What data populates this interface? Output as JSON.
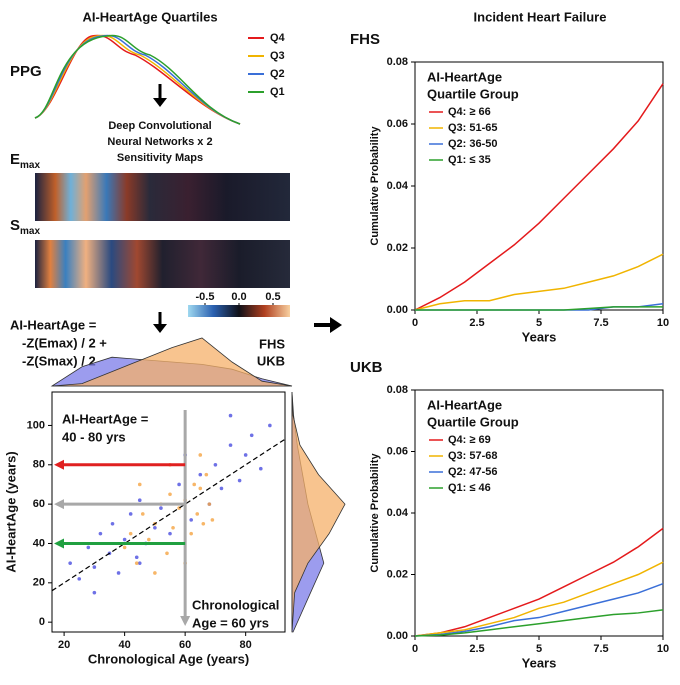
{
  "figure": {
    "left_title": "AI-HeartAge Quartiles",
    "right_title": "Incident Heart Failure",
    "ppg_label": "PPG",
    "network_lines": [
      "Deep Convolutional",
      "Neural Networks x 2",
      "Sensitivity Maps"
    ],
    "emax": {
      "main": "E",
      "sub": "max"
    },
    "smax": {
      "main": "S",
      "sub": "max"
    },
    "formula_lines": [
      "AI-HeartAge =",
      "-Z(Emax) / 2  +",
      "-Z(Smax) / 2"
    ]
  },
  "ppg_legend": [
    {
      "name": "Q4",
      "color": "#e41a1c"
    },
    {
      "name": "Q3",
      "color": "#f0b400"
    },
    {
      "name": "Q2",
      "color": "#3a6fd8"
    },
    {
      "name": "Q1",
      "color": "#2ca02c"
    }
  ],
  "colorbar": {
    "lim": [
      -0.75,
      0.75
    ],
    "ticks": [
      -0.5,
      {
        "value": 0,
        "label": "0.0"
      },
      0.5
    ]
  },
  "chart_data": [
    {
      "type": "area",
      "orientation": "horizontal",
      "x": [
        15,
        25,
        35,
        45,
        55,
        65,
        75,
        85,
        95
      ],
      "xlim": [
        15,
        95
      ],
      "ylim": [
        0,
        1
      ],
      "series": [
        {
          "name": "FHS",
          "color": "#7b7be8",
          "values": [
            0,
            0.4,
            0.6,
            0.55,
            0.5,
            0.45,
            0.35,
            0.15,
            0
          ]
        },
        {
          "name": "UKB",
          "color": "#f5b06a",
          "values": [
            0,
            0.05,
            0.3,
            0.55,
            0.8,
            1.0,
            0.5,
            0.1,
            0
          ]
        }
      ]
    },
    {
      "type": "scatter",
      "xlabel": "Chronological Age (years)",
      "ylabel": "AI-HeartAge (years)",
      "xlim": [
        16,
        93
      ],
      "ylim": [
        -5,
        117
      ],
      "xticks": [
        20,
        40,
        60,
        80
      ],
      "yticks": [
        0,
        20,
        40,
        60,
        80,
        100
      ],
      "diagonal": true,
      "vline": 60,
      "arrows": [
        {
          "y": 80,
          "color": "#e02020"
        },
        {
          "y": 60,
          "color": "#a8a8a8"
        },
        {
          "y": 40,
          "color": "#20a040"
        }
      ],
      "annotations": [
        [
          "AI-HeartAge =",
          "40 - 80 yrs"
        ],
        [
          "Chronological",
          "Age = 60 yrs"
        ]
      ],
      "series": [
        {
          "color": "#4a4ee0",
          "x": [
            22,
            25,
            28,
            30,
            32,
            35,
            36,
            38,
            40,
            42,
            44,
            45,
            47,
            50,
            52,
            55,
            58,
            62,
            65,
            68,
            70,
            72,
            75,
            78,
            80,
            82,
            85,
            88,
            30,
            45,
            60,
            75
          ],
          "y": [
            30,
            22,
            38,
            28,
            45,
            35,
            50,
            25,
            42,
            55,
            33,
            62,
            40,
            48,
            58,
            45,
            70,
            52,
            75,
            60,
            80,
            68,
            90,
            72,
            85,
            95,
            78,
            100,
            15,
            30,
            85,
            105
          ]
        },
        {
          "color": "#f5a442",
          "x": [
            40,
            42,
            44,
            46,
            48,
            50,
            52,
            54,
            55,
            56,
            58,
            60,
            62,
            63,
            64,
            65,
            66,
            67,
            68,
            69,
            45,
            50,
            55,
            60,
            65
          ],
          "y": [
            38,
            45,
            30,
            55,
            42,
            50,
            60,
            35,
            65,
            48,
            58,
            62,
            45,
            70,
            55,
            68,
            50,
            75,
            60,
            52,
            70,
            25,
            80,
            30,
            85
          ]
        }
      ]
    },
    {
      "type": "area",
      "orientation": "vertical",
      "y": [
        -5,
        15,
        30,
        45,
        60,
        75,
        90,
        105,
        117
      ],
      "ylim": [
        -5,
        117
      ],
      "xlim": [
        0,
        1
      ],
      "series": [
        {
          "color": "#7b7be8",
          "values": [
            0.02,
            0.35,
            0.6,
            0.45,
            0.3,
            0.2,
            0.1,
            0.03,
            0
          ]
        },
        {
          "color": "#f5b06a",
          "values": [
            0,
            0.05,
            0.3,
            0.7,
            1.0,
            0.5,
            0.15,
            0.02,
            0
          ]
        }
      ]
    },
    {
      "type": "line",
      "title": "FHS",
      "xlabel": "Years",
      "ylabel": "Cumulative Probability",
      "legend_title": [
        "AI-HeartAge",
        "Quartile Group"
      ],
      "x": [
        0,
        1,
        2,
        3,
        4,
        5,
        6,
        7,
        8,
        9,
        10
      ],
      "xlim": [
        0,
        10
      ],
      "ylim": [
        0,
        0.08
      ],
      "xticks": [
        0,
        2.5,
        5,
        7.5,
        10
      ],
      "yticks": [
        {
          "value": 0,
          "label": "0.00"
        },
        {
          "value": 0.02,
          "label": "0.02"
        },
        {
          "value": 0.04,
          "label": "0.04"
        },
        {
          "value": 0.06,
          "label": "0.06"
        },
        {
          "value": 0.08,
          "label": "0.08"
        }
      ],
      "series": [
        {
          "name": "Q4: ≥ 66",
          "color": "#e41a1c",
          "values": [
            0,
            0.004,
            0.009,
            0.015,
            0.021,
            0.028,
            0.036,
            0.044,
            0.052,
            0.061,
            0.073
          ]
        },
        {
          "name": "Q3: 51-65",
          "color": "#f0b400",
          "values": [
            0,
            0.002,
            0.003,
            0.003,
            0.005,
            0.006,
            0.007,
            0.009,
            0.011,
            0.014,
            0.018
          ]
        },
        {
          "name": "Q2: 36-50",
          "color": "#3a6fd8",
          "values": [
            0,
            0,
            0,
            0,
            0,
            0,
            0,
            0,
            0.001,
            0.001,
            0.002
          ]
        },
        {
          "name": "Q1: ≤ 35",
          "color": "#2ca02c",
          "values": [
            0,
            0,
            0,
            0,
            0,
            0,
            0,
            0.0005,
            0.001,
            0.001,
            0.001
          ]
        }
      ]
    },
    {
      "type": "line",
      "title": "UKB",
      "xlabel": "Years",
      "ylabel": "Cumulative Probability",
      "legend_title": [
        "AI-HeartAge",
        "Quartile Group"
      ],
      "x": [
        0,
        1,
        2,
        3,
        4,
        5,
        6,
        7,
        8,
        9,
        10
      ],
      "xlim": [
        0,
        10
      ],
      "ylim": [
        0,
        0.08
      ],
      "xticks": [
        0,
        2.5,
        5,
        7.5,
        10
      ],
      "yticks": [
        {
          "value": 0,
          "label": "0.00"
        },
        {
          "value": 0.02,
          "label": "0.02"
        },
        {
          "value": 0.04,
          "label": "0.04"
        },
        {
          "value": 0.06,
          "label": "0.06"
        },
        {
          "value": 0.08,
          "label": "0.08"
        }
      ],
      "series": [
        {
          "name": "Q4: ≥ 69",
          "color": "#e41a1c",
          "values": [
            0,
            0.001,
            0.003,
            0.006,
            0.009,
            0.012,
            0.016,
            0.02,
            0.024,
            0.029,
            0.035
          ]
        },
        {
          "name": "Q3: 57-68",
          "color": "#f0b400",
          "values": [
            0,
            0.001,
            0.002,
            0.004,
            0.006,
            0.009,
            0.011,
            0.014,
            0.017,
            0.02,
            0.024
          ]
        },
        {
          "name": "Q2: 47-56",
          "color": "#3a6fd8",
          "values": [
            0,
            0.0005,
            0.0015,
            0.003,
            0.005,
            0.006,
            0.008,
            0.01,
            0.012,
            0.014,
            0.017
          ]
        },
        {
          "name": "Q1: ≤ 46",
          "color": "#2ca02c",
          "values": [
            0,
            0.0003,
            0.001,
            0.002,
            0.003,
            0.004,
            0.005,
            0.006,
            0.007,
            0.0075,
            0.0085
          ]
        }
      ]
    }
  ]
}
